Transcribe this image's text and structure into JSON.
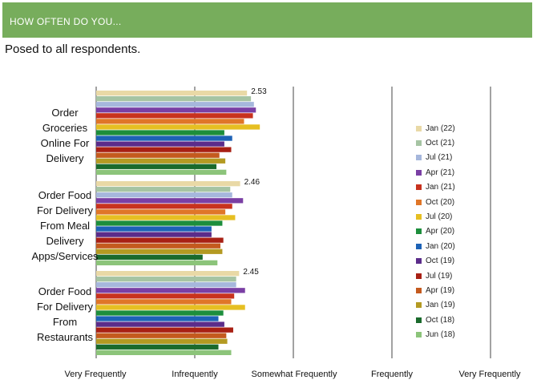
{
  "header": {
    "title": "HOW OFTEN DO YOU..."
  },
  "subtitle": "Posed to all respondents.",
  "chart_data": {
    "type": "bar",
    "orientation": "horizontal",
    "x_ticks": [
      "Very Frequently",
      "Infrequently",
      "Somewhat Frequently",
      "Frequently",
      "Very Frequently"
    ],
    "xlim": [
      1,
      5
    ],
    "grid": true,
    "legend_position": "right",
    "categories": [
      {
        "label_lines": [
          "Order",
          "Groceries",
          "Online For",
          "Delivery"
        ],
        "annotation": "2.53"
      },
      {
        "label_lines": [
          "Order Food",
          "For Delivery",
          "From Meal",
          "Delivery",
          "Apps/Services"
        ],
        "annotation": "2.46"
      },
      {
        "label_lines": [
          "Order Food",
          "For Delivery",
          "From",
          "Restaurants"
        ],
        "annotation": "2.45"
      }
    ],
    "series": [
      {
        "name": "Jan (22)",
        "color": "#e9d9a6",
        "values": [
          2.53,
          2.46,
          2.45
        ]
      },
      {
        "name": "Oct (21)",
        "color": "#a6c4a3",
        "values": [
          2.57,
          2.36,
          2.42
        ]
      },
      {
        "name": "Jul (21)",
        "color": "#a6b7dc",
        "values": [
          2.6,
          2.38,
          2.42
        ]
      },
      {
        "name": "Apr (21)",
        "color": "#7a3fa4",
        "values": [
          2.62,
          2.49,
          2.51
        ]
      },
      {
        "name": "Jan (21)",
        "color": "#c8321e",
        "values": [
          2.59,
          2.38,
          2.4
        ]
      },
      {
        "name": "Oct (20)",
        "color": "#e07628",
        "values": [
          2.5,
          2.31,
          2.37
        ]
      },
      {
        "name": "Jul (20)",
        "color": "#e6bf22",
        "values": [
          2.66,
          2.41,
          2.51
        ]
      },
      {
        "name": "Apr (20)",
        "color": "#1d8e3c",
        "values": [
          2.3,
          2.28,
          2.29
        ]
      },
      {
        "name": "Jan (20)",
        "color": "#1d62b6",
        "values": [
          2.38,
          2.17,
          2.24
        ]
      },
      {
        "name": "Oct (19)",
        "color": "#5b2c8a",
        "values": [
          2.3,
          2.17,
          2.3
        ]
      },
      {
        "name": "Jul (19)",
        "color": "#a82014",
        "values": [
          2.37,
          2.29,
          2.39
        ]
      },
      {
        "name": "Apr (19)",
        "color": "#c45a1e",
        "values": [
          2.25,
          2.26,
          2.32
        ]
      },
      {
        "name": "Jan (19)",
        "color": "#b49a22",
        "values": [
          2.31,
          2.28,
          2.33
        ]
      },
      {
        "name": "Oct (18)",
        "color": "#1a6a2c",
        "values": [
          2.22,
          2.08,
          2.24
        ]
      },
      {
        "name": "Jun (18)",
        "color": "#8cc47a",
        "values": [
          2.32,
          2.23,
          2.37
        ]
      }
    ]
  }
}
